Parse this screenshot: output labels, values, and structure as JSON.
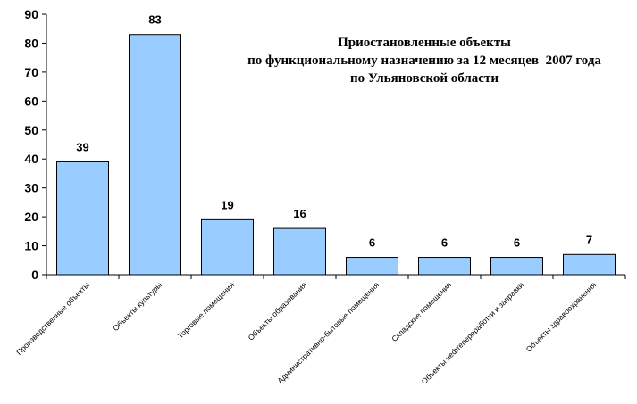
{
  "chart_data": {
    "type": "bar",
    "title_lines": [
      "Приостановленные объекты",
      "по функциональному назначению за 12 месяцев  2007 года",
      "по Ульяновской области"
    ],
    "categories": [
      "Производственные объекты",
      "Объекты культуры",
      "Торговые помещения",
      "Объекты образования",
      "Административно-бытовые помещения",
      "Складские помещения",
      "Объекты нефтепереработки и заправки",
      "Объекты здравоохранения"
    ],
    "values": [
      39,
      83,
      19,
      16,
      6,
      6,
      6,
      7
    ],
    "ylim": [
      0,
      90
    ],
    "yticks": [
      0,
      10,
      20,
      30,
      40,
      50,
      60,
      70,
      80,
      90
    ],
    "bar_color": "#99ccff",
    "grid": false,
    "legend": "none"
  }
}
